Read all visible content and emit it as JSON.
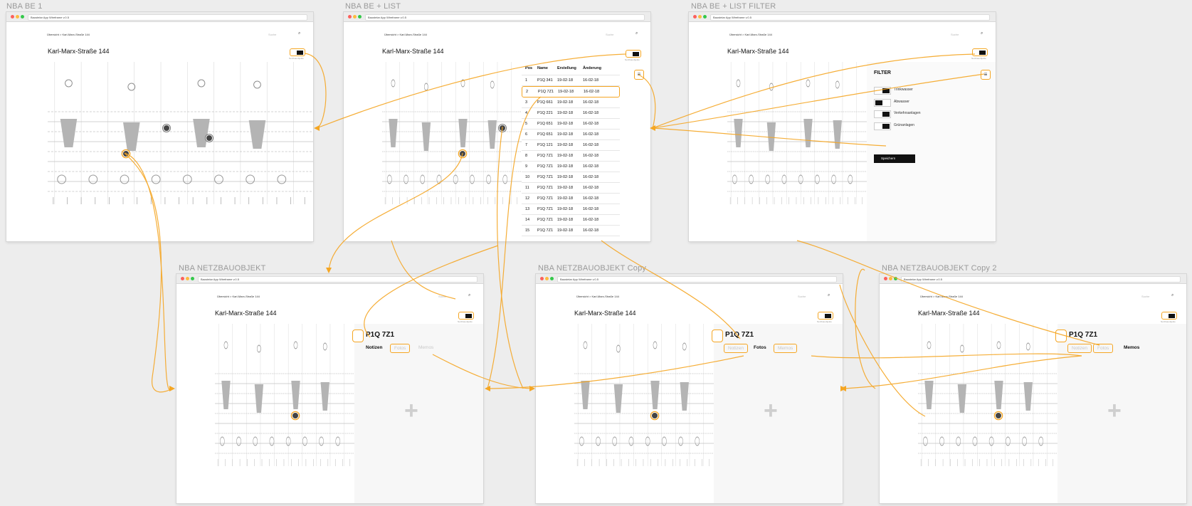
{
  "colors": {
    "accent": "#f5a623",
    "background": "#ededed"
  },
  "app_url": "Baustelar App Wireframe v.0.5",
  "breadcrumb": "Übersicht > Karl-Marx-Straße 144",
  "search_placeholder": "Suche",
  "page_title": "Karl-Marx-Straße 144",
  "toggle_label": "Netzbauobjekte",
  "artboards": {
    "a1": "NBA BE 1",
    "a2": "NBA BE + LIST",
    "a3": "NBA BE + LIST FILTER",
    "a4": "NBA NETZBAUOBJEKT",
    "a5": "NBA NETZBAUOBJEKT Copy",
    "a6": "NBA NETZBAUOBJEKT Copy 2"
  },
  "list": {
    "headers": {
      "pos": "Pos",
      "name": "Name",
      "created": "Erstellung",
      "changed": "Änderung"
    },
    "rows": [
      {
        "pos": "1",
        "name": "P1Q 341",
        "created": "19-02-18",
        "changed": "16-02-18"
      },
      {
        "pos": "2",
        "name": "P1Q 7Z1",
        "created": "19-02-18",
        "changed": "16-02-18"
      },
      {
        "pos": "3",
        "name": "P1Q 661",
        "created": "19-02-18",
        "changed": "16-02-18"
      },
      {
        "pos": "4",
        "name": "P1Q 221",
        "created": "19-02-18",
        "changed": "16-02-18"
      },
      {
        "pos": "5",
        "name": "P1Q 651",
        "created": "19-02-18",
        "changed": "16-02-18"
      },
      {
        "pos": "6",
        "name": "P1Q 651",
        "created": "19-02-18",
        "changed": "16-02-18"
      },
      {
        "pos": "7",
        "name": "P1Q 121",
        "created": "19-02-18",
        "changed": "16-02-18"
      },
      {
        "pos": "8",
        "name": "P1Q 7Z1",
        "created": "19-02-18",
        "changed": "16-02-18"
      },
      {
        "pos": "9",
        "name": "P1Q 7Z1",
        "created": "19-02-18",
        "changed": "16-02-18"
      },
      {
        "pos": "10",
        "name": "P1Q 7Z1",
        "created": "19-02-18",
        "changed": "16-02-18"
      },
      {
        "pos": "11",
        "name": "P1Q 7Z1",
        "created": "19-02-18",
        "changed": "16-02-18"
      },
      {
        "pos": "12",
        "name": "P1Q 7Z1",
        "created": "19-02-18",
        "changed": "16-02-18"
      },
      {
        "pos": "13",
        "name": "P1Q 7Z1",
        "created": "19-02-18",
        "changed": "16-02-18"
      },
      {
        "pos": "14",
        "name": "P1Q 7Z1",
        "created": "19-02-18",
        "changed": "16-02-18"
      },
      {
        "pos": "15",
        "name": "P1Q 7Z1",
        "created": "19-02-18",
        "changed": "16-02-18"
      }
    ]
  },
  "filter": {
    "title": "FILTER",
    "items": [
      "Trinkwasser",
      "Abwasser",
      "Verkehrsanlagen",
      "Grünanlagen"
    ],
    "save": "Speichern"
  },
  "detail": {
    "title": "P1Q 7Z1",
    "tabs": {
      "notes": "Notizen",
      "photos": "Fotos",
      "memos": "Memos"
    },
    "add_icon": "+"
  },
  "icons": {
    "search": "search-icon",
    "filter": "filter-icon",
    "toggle": "toggle-switch",
    "pin": "map-pin-icon",
    "add": "plus-icon"
  }
}
